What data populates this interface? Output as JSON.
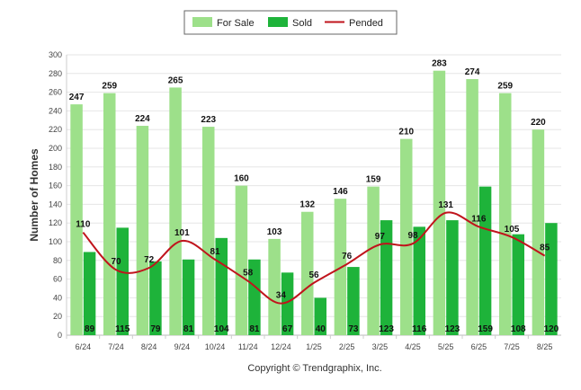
{
  "chart_data": {
    "type": "bar",
    "title": "",
    "xlabel": "",
    "ylabel": "Number of Homes",
    "ylim": [
      0,
      300
    ],
    "yticks": [
      0,
      20,
      40,
      60,
      80,
      100,
      120,
      140,
      160,
      180,
      200,
      220,
      240,
      260,
      280,
      300
    ],
    "grid": true,
    "legend_position": "top-center",
    "categories": [
      "6/24",
      "7/24",
      "8/24",
      "9/24",
      "10/24",
      "11/24",
      "12/24",
      "1/25",
      "2/25",
      "3/25",
      "4/25",
      "5/25",
      "6/25",
      "7/25",
      "8/25"
    ],
    "series": [
      {
        "name": "For Sale",
        "type": "bar",
        "color": "#9de08a",
        "values": [
          247,
          259,
          224,
          265,
          223,
          160,
          103,
          132,
          146,
          159,
          210,
          283,
          274,
          259,
          220
        ]
      },
      {
        "name": "Sold",
        "type": "bar",
        "color": "#1eb33a",
        "values": [
          89,
          115,
          79,
          81,
          104,
          81,
          67,
          40,
          73,
          123,
          116,
          123,
          159,
          108,
          120
        ]
      },
      {
        "name": "Pended",
        "type": "line",
        "color": "#c0141c",
        "values": [
          110,
          70,
          72,
          101,
          81,
          58,
          34,
          56,
          76,
          97,
          98,
          131,
          116,
          105,
          85
        ]
      }
    ],
    "footer": "Copyright © Trendgraphix, Inc."
  }
}
